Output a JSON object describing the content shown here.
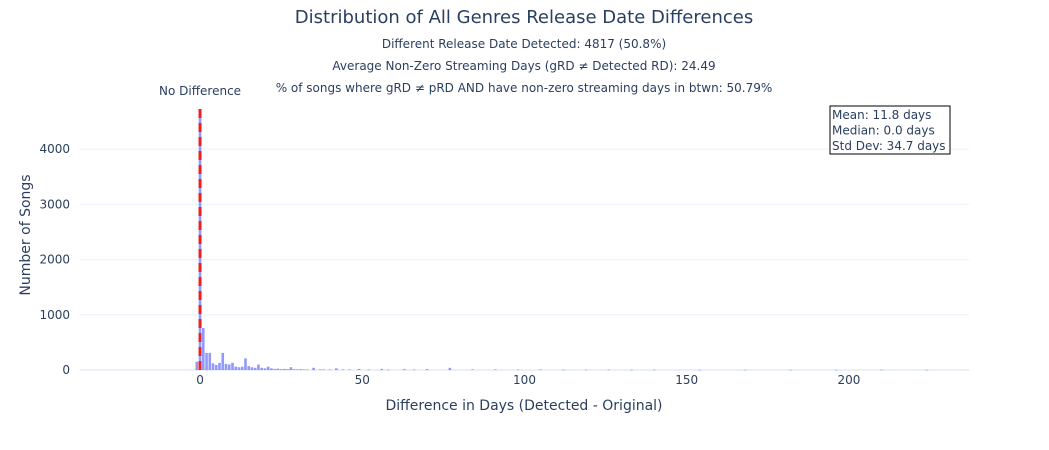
{
  "chart_data": {
    "type": "bar",
    "title": "Distribution of All Genres Release Date Differences",
    "subtitles": [
      "Different Release Date Detected: 4817 (50.8%)",
      "Average Non-Zero Streaming Days (gRD ≠ Detected RD): 24.49",
      "% of songs where gRD ≠ pRD AND have non-zero streaming days in btwn: 50.79%"
    ],
    "xlabel": "Difference in Days (Detected - Original)",
    "ylabel": "Number of Songs",
    "xlim": [
      -37,
      237
    ],
    "ylim": [
      0,
      4800
    ],
    "xticks": [
      0,
      50,
      100,
      150,
      200
    ],
    "yticks": [
      0,
      1000,
      2000,
      3000,
      4000
    ],
    "grid": true,
    "vline": {
      "x": 0,
      "label": "No Difference",
      "color": "#ef1f1f"
    },
    "stats_box": {
      "lines": [
        "Mean: 11.8 days",
        "Median: 0.0 days",
        "Std Dev: 34.7 days"
      ],
      "placement": "top-right"
    },
    "bar_color": "#636efa",
    "bars": [
      {
        "x": -1,
        "y": 150
      },
      {
        "x": 0,
        "y": 4700
      },
      {
        "x": 1,
        "y": 760
      },
      {
        "x": 2,
        "y": 310
      },
      {
        "x": 3,
        "y": 310
      },
      {
        "x": 4,
        "y": 120
      },
      {
        "x": 5,
        "y": 90
      },
      {
        "x": 6,
        "y": 130
      },
      {
        "x": 7,
        "y": 310
      },
      {
        "x": 8,
        "y": 110
      },
      {
        "x": 9,
        "y": 100
      },
      {
        "x": 10,
        "y": 130
      },
      {
        "x": 11,
        "y": 60
      },
      {
        "x": 12,
        "y": 50
      },
      {
        "x": 13,
        "y": 60
      },
      {
        "x": 14,
        "y": 210
      },
      {
        "x": 15,
        "y": 70
      },
      {
        "x": 16,
        "y": 50
      },
      {
        "x": 17,
        "y": 40
      },
      {
        "x": 18,
        "y": 100
      },
      {
        "x": 19,
        "y": 40
      },
      {
        "x": 20,
        "y": 30
      },
      {
        "x": 21,
        "y": 60
      },
      {
        "x": 22,
        "y": 30
      },
      {
        "x": 23,
        "y": 20
      },
      {
        "x": 24,
        "y": 25
      },
      {
        "x": 25,
        "y": 15
      },
      {
        "x": 26,
        "y": 20
      },
      {
        "x": 27,
        "y": 15
      },
      {
        "x": 28,
        "y": 50
      },
      {
        "x": 29,
        "y": 15
      },
      {
        "x": 30,
        "y": 10
      },
      {
        "x": 31,
        "y": 15
      },
      {
        "x": 32,
        "y": 10
      },
      {
        "x": 33,
        "y": 10
      },
      {
        "x": 35,
        "y": 40
      },
      {
        "x": 37,
        "y": 10
      },
      {
        "x": 38,
        "y": 10
      },
      {
        "x": 40,
        "y": 8
      },
      {
        "x": 42,
        "y": 30
      },
      {
        "x": 44,
        "y": 10
      },
      {
        "x": 46,
        "y": 8
      },
      {
        "x": 49,
        "y": 20
      },
      {
        "x": 52,
        "y": 8
      },
      {
        "x": 56,
        "y": 20
      },
      {
        "x": 58,
        "y": 6
      },
      {
        "x": 63,
        "y": 15
      },
      {
        "x": 66,
        "y": 6
      },
      {
        "x": 70,
        "y": 15
      },
      {
        "x": 77,
        "y": 40
      },
      {
        "x": 84,
        "y": 10
      },
      {
        "x": 91,
        "y": 10
      },
      {
        "x": 98,
        "y": 8
      },
      {
        "x": 105,
        "y": 8
      },
      {
        "x": 112,
        "y": 6
      },
      {
        "x": 119,
        "y": 5
      },
      {
        "x": 126,
        "y": 5
      },
      {
        "x": 133,
        "y": 5
      },
      {
        "x": 140,
        "y": 5
      },
      {
        "x": 154,
        "y": 4
      },
      {
        "x": 168,
        "y": 4
      },
      {
        "x": 182,
        "y": 4
      },
      {
        "x": 196,
        "y": 4
      },
      {
        "x": 210,
        "y": 6
      },
      {
        "x": 224,
        "y": 3
      }
    ]
  }
}
